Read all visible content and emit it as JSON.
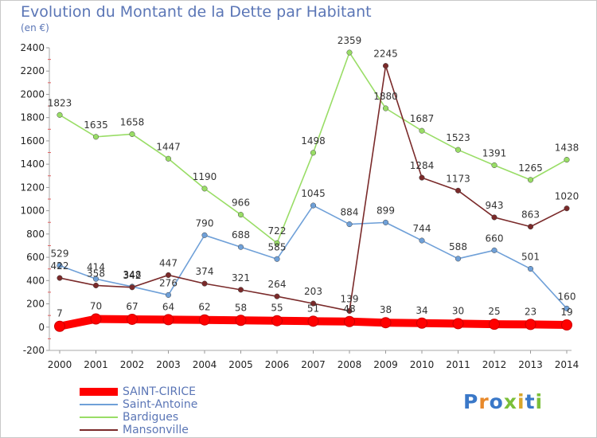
{
  "header": {
    "title": "Evolution du Montant de la Dette par Habitant",
    "subtitle": "(en €)"
  },
  "logo": {
    "text": "Proxiti"
  },
  "chart_data": {
    "type": "line",
    "title": "Evolution du Montant de la Dette par Habitant",
    "subtitle": "(en €)",
    "x": [
      2000,
      2001,
      2002,
      2003,
      2004,
      2005,
      2006,
      2007,
      2008,
      2009,
      2010,
      2011,
      2012,
      2013,
      2014
    ],
    "ylim": [
      -200,
      2400
    ],
    "yticks": [
      -200,
      0,
      200,
      400,
      600,
      800,
      1000,
      1200,
      1400,
      1600,
      1800,
      2000,
      2200,
      2400
    ],
    "grid": false,
    "legend_position": "bottom-left",
    "series": [
      {
        "name": "SAINT-CIRICE",
        "color": "#ff0000",
        "values": [
          7,
          70,
          67,
          64,
          62,
          58,
          55,
          51,
          48,
          38,
          34,
          30,
          25,
          23,
          19
        ]
      },
      {
        "name": "Saint-Antoine",
        "color": "#6fa0d8",
        "values": [
          529,
          414,
          348,
          276,
          790,
          688,
          585,
          1045,
          884,
          899,
          744,
          588,
          660,
          501,
          160
        ]
      },
      {
        "name": "Bardigues",
        "color": "#99dd66",
        "values": [
          1823,
          1635,
          1658,
          1447,
          1190,
          966,
          722,
          1498,
          2359,
          1880,
          1687,
          1523,
          1391,
          1265,
          1438
        ]
      },
      {
        "name": "Mansonville",
        "color": "#7a2a2a",
        "values": [
          422,
          358,
          342,
          447,
          374,
          321,
          264,
          203,
          139,
          2245,
          1284,
          1173,
          943,
          863,
          1020
        ]
      }
    ]
  }
}
